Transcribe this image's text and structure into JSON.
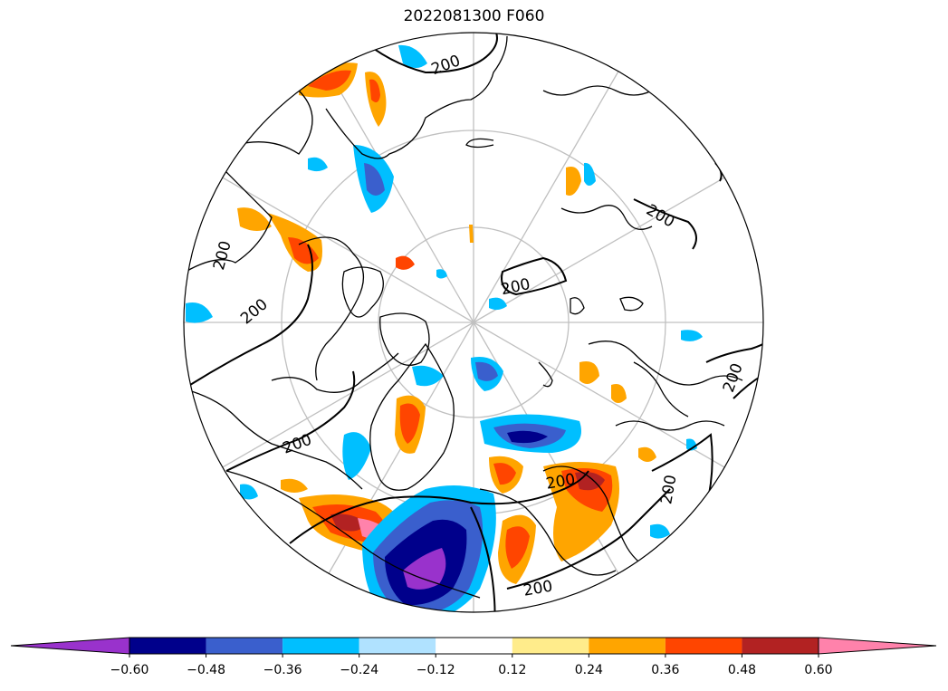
{
  "title": "2022081300 F060",
  "map": {
    "projection": "north-polar-stereographic",
    "contour_level_label": "200",
    "graticule_color": "#c0c0c0",
    "coastline_color": "#000000"
  },
  "colorbar": {
    "extend": "both",
    "levels": [
      -0.6,
      -0.48,
      -0.36,
      -0.24,
      -0.12,
      0.12,
      0.24,
      0.36,
      0.48,
      0.6
    ],
    "tick_labels": [
      "−0.60",
      "−0.48",
      "−0.36",
      "−0.24",
      "−0.12",
      "0.12",
      "0.24",
      "0.36",
      "0.48",
      "0.60"
    ],
    "colors": [
      "#9932cc",
      "#00008b",
      "#3a5fcd",
      "#00bfff",
      "#b0e2ff",
      "#ffffff",
      "#ffec8b",
      "#ffa500",
      "#ff4500",
      "#b22222",
      "#ff82ab"
    ]
  }
}
